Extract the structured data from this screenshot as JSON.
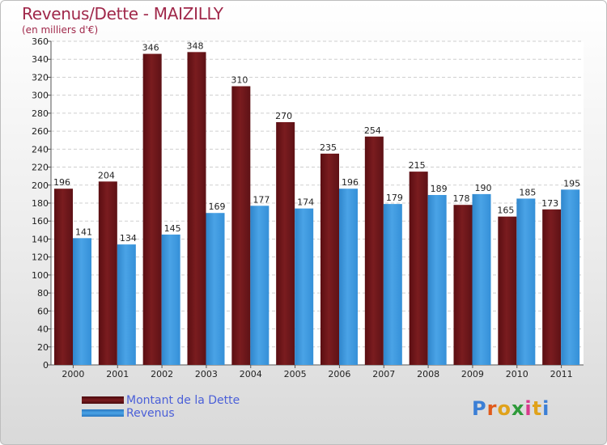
{
  "title": "Revenus/Dette - MAIZILLY",
  "subtitle": "(en milliers d'€)",
  "logo": {
    "letters": [
      "P",
      "r",
      "o",
      "x",
      "i",
      "t",
      "i"
    ],
    "colors": [
      "#3b7fd6",
      "#e05a1b",
      "#e0a21b",
      "#2e9a3a",
      "#d83a8c",
      "#e0a21b",
      "#3b7fd6"
    ]
  },
  "colors": {
    "dette": "#7a1c1f",
    "revenus": "#4aa3e6"
  },
  "chart_data": {
    "type": "bar",
    "title": "Revenus/Dette - MAIZILLY",
    "subtitle": "(en milliers d'€)",
    "categories": [
      "2000",
      "2001",
      "2002",
      "2003",
      "2004",
      "2005",
      "2006",
      "2007",
      "2008",
      "2009",
      "2010",
      "2011"
    ],
    "series": [
      {
        "name": "Montant de la Dette",
        "values": [
          196,
          204,
          346,
          348,
          310,
          270,
          235,
          254,
          215,
          178,
          165,
          173
        ]
      },
      {
        "name": "Revenus",
        "values": [
          141,
          134,
          145,
          169,
          177,
          174,
          196,
          179,
          189,
          190,
          185,
          195
        ]
      }
    ],
    "ylim": [
      0,
      360
    ],
    "yticks": [
      0,
      20,
      40,
      60,
      80,
      100,
      120,
      140,
      160,
      180,
      200,
      220,
      240,
      260,
      280,
      300,
      320,
      340,
      360
    ],
    "grid": true,
    "legend": "bottom-left"
  }
}
